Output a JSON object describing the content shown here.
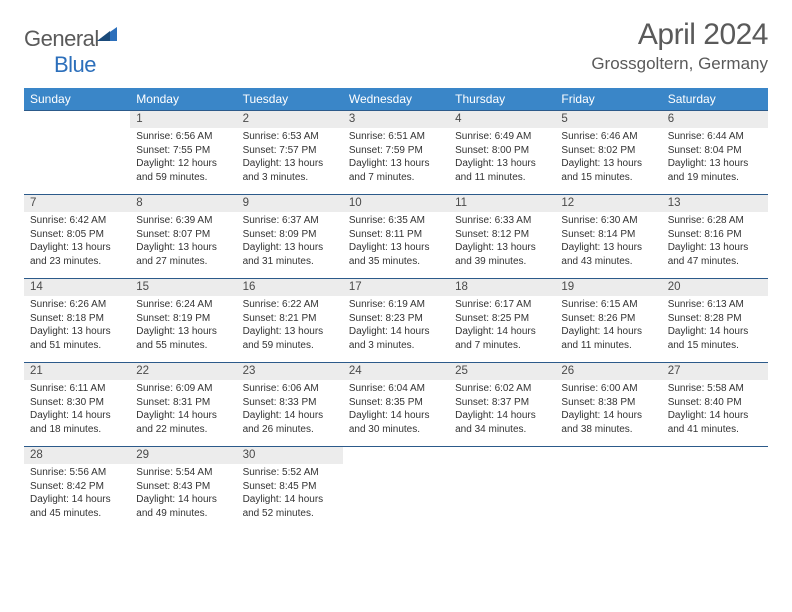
{
  "logo": {
    "word1": "General",
    "word2": "Blue"
  },
  "title": "April 2024",
  "location": "Grossgoltern, Germany",
  "colors": {
    "header_bg": "#3a86c8",
    "header_text": "#ffffff",
    "strip_bg": "#ececec",
    "strip_border": "#2c5a8a",
    "body_text": "#333333",
    "title_text": "#5a5a5a"
  },
  "day_headers": [
    "Sunday",
    "Monday",
    "Tuesday",
    "Wednesday",
    "Thursday",
    "Friday",
    "Saturday"
  ],
  "weeks": [
    [
      {
        "n": "",
        "sr": "",
        "ss": "",
        "dl": ""
      },
      {
        "n": "1",
        "sr": "Sunrise: 6:56 AM",
        "ss": "Sunset: 7:55 PM",
        "dl": "Daylight: 12 hours and 59 minutes."
      },
      {
        "n": "2",
        "sr": "Sunrise: 6:53 AM",
        "ss": "Sunset: 7:57 PM",
        "dl": "Daylight: 13 hours and 3 minutes."
      },
      {
        "n": "3",
        "sr": "Sunrise: 6:51 AM",
        "ss": "Sunset: 7:59 PM",
        "dl": "Daylight: 13 hours and 7 minutes."
      },
      {
        "n": "4",
        "sr": "Sunrise: 6:49 AM",
        "ss": "Sunset: 8:00 PM",
        "dl": "Daylight: 13 hours and 11 minutes."
      },
      {
        "n": "5",
        "sr": "Sunrise: 6:46 AM",
        "ss": "Sunset: 8:02 PM",
        "dl": "Daylight: 13 hours and 15 minutes."
      },
      {
        "n": "6",
        "sr": "Sunrise: 6:44 AM",
        "ss": "Sunset: 8:04 PM",
        "dl": "Daylight: 13 hours and 19 minutes."
      }
    ],
    [
      {
        "n": "7",
        "sr": "Sunrise: 6:42 AM",
        "ss": "Sunset: 8:05 PM",
        "dl": "Daylight: 13 hours and 23 minutes."
      },
      {
        "n": "8",
        "sr": "Sunrise: 6:39 AM",
        "ss": "Sunset: 8:07 PM",
        "dl": "Daylight: 13 hours and 27 minutes."
      },
      {
        "n": "9",
        "sr": "Sunrise: 6:37 AM",
        "ss": "Sunset: 8:09 PM",
        "dl": "Daylight: 13 hours and 31 minutes."
      },
      {
        "n": "10",
        "sr": "Sunrise: 6:35 AM",
        "ss": "Sunset: 8:11 PM",
        "dl": "Daylight: 13 hours and 35 minutes."
      },
      {
        "n": "11",
        "sr": "Sunrise: 6:33 AM",
        "ss": "Sunset: 8:12 PM",
        "dl": "Daylight: 13 hours and 39 minutes."
      },
      {
        "n": "12",
        "sr": "Sunrise: 6:30 AM",
        "ss": "Sunset: 8:14 PM",
        "dl": "Daylight: 13 hours and 43 minutes."
      },
      {
        "n": "13",
        "sr": "Sunrise: 6:28 AM",
        "ss": "Sunset: 8:16 PM",
        "dl": "Daylight: 13 hours and 47 minutes."
      }
    ],
    [
      {
        "n": "14",
        "sr": "Sunrise: 6:26 AM",
        "ss": "Sunset: 8:18 PM",
        "dl": "Daylight: 13 hours and 51 minutes."
      },
      {
        "n": "15",
        "sr": "Sunrise: 6:24 AM",
        "ss": "Sunset: 8:19 PM",
        "dl": "Daylight: 13 hours and 55 minutes."
      },
      {
        "n": "16",
        "sr": "Sunrise: 6:22 AM",
        "ss": "Sunset: 8:21 PM",
        "dl": "Daylight: 13 hours and 59 minutes."
      },
      {
        "n": "17",
        "sr": "Sunrise: 6:19 AM",
        "ss": "Sunset: 8:23 PM",
        "dl": "Daylight: 14 hours and 3 minutes."
      },
      {
        "n": "18",
        "sr": "Sunrise: 6:17 AM",
        "ss": "Sunset: 8:25 PM",
        "dl": "Daylight: 14 hours and 7 minutes."
      },
      {
        "n": "19",
        "sr": "Sunrise: 6:15 AM",
        "ss": "Sunset: 8:26 PM",
        "dl": "Daylight: 14 hours and 11 minutes."
      },
      {
        "n": "20",
        "sr": "Sunrise: 6:13 AM",
        "ss": "Sunset: 8:28 PM",
        "dl": "Daylight: 14 hours and 15 minutes."
      }
    ],
    [
      {
        "n": "21",
        "sr": "Sunrise: 6:11 AM",
        "ss": "Sunset: 8:30 PM",
        "dl": "Daylight: 14 hours and 18 minutes."
      },
      {
        "n": "22",
        "sr": "Sunrise: 6:09 AM",
        "ss": "Sunset: 8:31 PM",
        "dl": "Daylight: 14 hours and 22 minutes."
      },
      {
        "n": "23",
        "sr": "Sunrise: 6:06 AM",
        "ss": "Sunset: 8:33 PM",
        "dl": "Daylight: 14 hours and 26 minutes."
      },
      {
        "n": "24",
        "sr": "Sunrise: 6:04 AM",
        "ss": "Sunset: 8:35 PM",
        "dl": "Daylight: 14 hours and 30 minutes."
      },
      {
        "n": "25",
        "sr": "Sunrise: 6:02 AM",
        "ss": "Sunset: 8:37 PM",
        "dl": "Daylight: 14 hours and 34 minutes."
      },
      {
        "n": "26",
        "sr": "Sunrise: 6:00 AM",
        "ss": "Sunset: 8:38 PM",
        "dl": "Daylight: 14 hours and 38 minutes."
      },
      {
        "n": "27",
        "sr": "Sunrise: 5:58 AM",
        "ss": "Sunset: 8:40 PM",
        "dl": "Daylight: 14 hours and 41 minutes."
      }
    ],
    [
      {
        "n": "28",
        "sr": "Sunrise: 5:56 AM",
        "ss": "Sunset: 8:42 PM",
        "dl": "Daylight: 14 hours and 45 minutes."
      },
      {
        "n": "29",
        "sr": "Sunrise: 5:54 AM",
        "ss": "Sunset: 8:43 PM",
        "dl": "Daylight: 14 hours and 49 minutes."
      },
      {
        "n": "30",
        "sr": "Sunrise: 5:52 AM",
        "ss": "Sunset: 8:45 PM",
        "dl": "Daylight: 14 hours and 52 minutes."
      },
      {
        "n": "",
        "sr": "",
        "ss": "",
        "dl": ""
      },
      {
        "n": "",
        "sr": "",
        "ss": "",
        "dl": ""
      },
      {
        "n": "",
        "sr": "",
        "ss": "",
        "dl": ""
      },
      {
        "n": "",
        "sr": "",
        "ss": "",
        "dl": ""
      }
    ]
  ]
}
